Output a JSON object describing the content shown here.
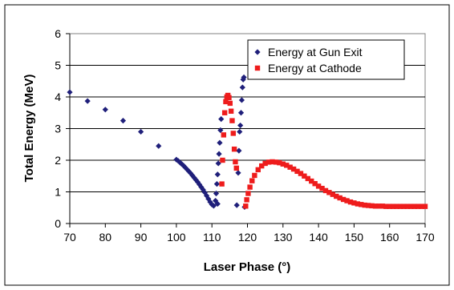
{
  "chart_data": {
    "type": "scatter",
    "title": "",
    "xlabel": "Laser Phase (°)",
    "ylabel": "Total Energy (MeV)",
    "xlim": [
      70,
      170
    ],
    "ylim": [
      0,
      6
    ],
    "xticks": [
      70,
      80,
      90,
      100,
      110,
      120,
      130,
      140,
      150,
      160,
      170
    ],
    "yticks": [
      0,
      1,
      2,
      3,
      4,
      5,
      6
    ],
    "grid": "horizontal",
    "legend_position": "top-right",
    "series": [
      {
        "name": "Energy at Gun Exit",
        "marker": "diamond",
        "color": "#1f1f7a",
        "points": [
          [
            70,
            4.15
          ],
          [
            75,
            3.87
          ],
          [
            80,
            3.6
          ],
          [
            85,
            3.25
          ],
          [
            90,
            2.9
          ],
          [
            95,
            2.45
          ],
          [
            100,
            2.02
          ],
          [
            100.5,
            1.98
          ],
          [
            101,
            1.93
          ],
          [
            101.5,
            1.88
          ],
          [
            102,
            1.83
          ],
          [
            102.5,
            1.77
          ],
          [
            103,
            1.71
          ],
          [
            103.5,
            1.65
          ],
          [
            104,
            1.59
          ],
          [
            104.5,
            1.52
          ],
          [
            105,
            1.45
          ],
          [
            105.5,
            1.38
          ],
          [
            106,
            1.31
          ],
          [
            106.5,
            1.23
          ],
          [
            107,
            1.15
          ],
          [
            107.5,
            1.07
          ],
          [
            108,
            0.98
          ],
          [
            108.5,
            0.88
          ],
          [
            109,
            0.78
          ],
          [
            109.5,
            0.68
          ],
          [
            110,
            0.6
          ],
          [
            110.5,
            0.56
          ],
          [
            111,
            0.72
          ],
          [
            111.2,
            0.95
          ],
          [
            111.4,
            1.25
          ],
          [
            111.6,
            1.55
          ],
          [
            111.8,
            1.9
          ],
          [
            112,
            2.2
          ],
          [
            112.2,
            2.55
          ],
          [
            112.4,
            2.95
          ],
          [
            112.6,
            3.3
          ],
          [
            111.6,
            0.62
          ],
          [
            117,
            0.58
          ],
          [
            117.4,
            1.6
          ],
          [
            117.6,
            2.3
          ],
          [
            117.8,
            2.9
          ],
          [
            118,
            3.1
          ],
          [
            118.2,
            3.5
          ],
          [
            118.4,
            3.9
          ],
          [
            118.6,
            4.3
          ],
          [
            118.8,
            4.55
          ],
          [
            119,
            4.62
          ],
          [
            119.2,
            0.52
          ]
        ]
      },
      {
        "name": "Energy at Cathode",
        "marker": "square",
        "color": "#ee1c1c",
        "points": [
          [
            112.8,
            1.25
          ],
          [
            113,
            2.0
          ],
          [
            113.3,
            2.8
          ],
          [
            113.6,
            3.5
          ],
          [
            113.9,
            3.85
          ],
          [
            114.2,
            4.0
          ],
          [
            114.5,
            4.05
          ],
          [
            114.8,
            3.98
          ],
          [
            115.1,
            3.8
          ],
          [
            115.4,
            3.55
          ],
          [
            115.7,
            3.25
          ],
          [
            116,
            2.85
          ],
          [
            116.3,
            2.35
          ],
          [
            116.6,
            1.95
          ],
          [
            116.9,
            1.75
          ],
          [
            119.5,
            0.55
          ],
          [
            119.8,
            0.75
          ],
          [
            120.2,
            0.95
          ],
          [
            120.7,
            1.15
          ],
          [
            121.3,
            1.35
          ],
          [
            122,
            1.52
          ],
          [
            123,
            1.7
          ],
          [
            124,
            1.82
          ],
          [
            125,
            1.9
          ],
          [
            126,
            1.94
          ],
          [
            127,
            1.95
          ],
          [
            128,
            1.94
          ],
          [
            129,
            1.92
          ],
          [
            130,
            1.88
          ],
          [
            131,
            1.84
          ],
          [
            132,
            1.78
          ],
          [
            133,
            1.72
          ],
          [
            134,
            1.65
          ],
          [
            135,
            1.58
          ],
          [
            136,
            1.5
          ],
          [
            137,
            1.42
          ],
          [
            138,
            1.34
          ],
          [
            139,
            1.26
          ],
          [
            140,
            1.18
          ],
          [
            141,
            1.11
          ],
          [
            142,
            1.04
          ],
          [
            143,
            0.98
          ],
          [
            144,
            0.92
          ],
          [
            145,
            0.86
          ],
          [
            146,
            0.81
          ],
          [
            147,
            0.76
          ],
          [
            148,
            0.72
          ],
          [
            149,
            0.68
          ],
          [
            150,
            0.65
          ],
          [
            151,
            0.62
          ],
          [
            152,
            0.6
          ],
          [
            153,
            0.58
          ],
          [
            154,
            0.57
          ],
          [
            155,
            0.56
          ],
          [
            156,
            0.55
          ],
          [
            157,
            0.55
          ],
          [
            158,
            0.55
          ],
          [
            159,
            0.54
          ],
          [
            160,
            0.54
          ],
          [
            161,
            0.54
          ],
          [
            162,
            0.54
          ],
          [
            163,
            0.54
          ],
          [
            164,
            0.54
          ],
          [
            165,
            0.54
          ],
          [
            166,
            0.54
          ],
          [
            167,
            0.54
          ],
          [
            168,
            0.54
          ],
          [
            169,
            0.54
          ],
          [
            170,
            0.54
          ]
        ]
      }
    ]
  }
}
